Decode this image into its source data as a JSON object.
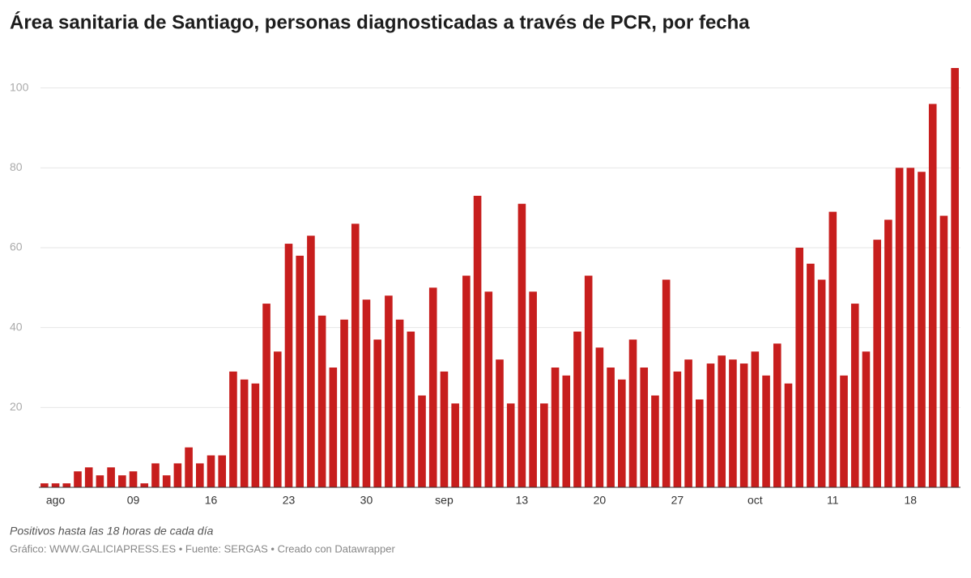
{
  "chart_data": {
    "type": "bar",
    "title": "Área sanitaria de Santiago, personas diagnosticadas a través de PCR, por fecha",
    "notes": "Positivos hasta las 18 horas de cada día",
    "source": "Gráfico: WWW.GALICIAPRESS.ES • Fuente: SERGAS • Creado con Datawrapper",
    "color": "#c71e1d",
    "categories": [
      null,
      "ago",
      null,
      null,
      null,
      null,
      null,
      null,
      "09",
      null,
      null,
      null,
      null,
      null,
      null,
      "16",
      null,
      null,
      null,
      null,
      null,
      null,
      "23",
      null,
      null,
      null,
      null,
      null,
      null,
      "30",
      null,
      null,
      null,
      null,
      null,
      null,
      "sep",
      null,
      null,
      null,
      null,
      null,
      null,
      "13",
      null,
      null,
      null,
      null,
      null,
      null,
      "20",
      null,
      null,
      null,
      null,
      null,
      null,
      "27",
      null,
      null,
      null,
      null,
      null,
      null,
      "oct",
      null,
      null,
      null,
      null,
      null,
      null,
      "11",
      null,
      null,
      null,
      null,
      null,
      null,
      "18",
      null,
      null,
      null,
      null
    ],
    "values": [
      1,
      1,
      1,
      4,
      5,
      3,
      5,
      3,
      4,
      1,
      6,
      3,
      6,
      10,
      6,
      8,
      8,
      29,
      27,
      26,
      46,
      34,
      61,
      58,
      63,
      43,
      30,
      42,
      66,
      47,
      37,
      48,
      42,
      39,
      23,
      50,
      29,
      21,
      53,
      73,
      49,
      32,
      21,
      71,
      49,
      21,
      30,
      28,
      39,
      53,
      35,
      30,
      27,
      37,
      30,
      23,
      52,
      29,
      32,
      22,
      31,
      33,
      32,
      31,
      34,
      28,
      36,
      26,
      60,
      56,
      52,
      69,
      28,
      46,
      34,
      62,
      67,
      80,
      80,
      79,
      96,
      68,
      105
    ],
    "ylim": [
      0,
      105
    ],
    "yticks": [
      20,
      40,
      60,
      80,
      100
    ],
    "grid": true
  }
}
